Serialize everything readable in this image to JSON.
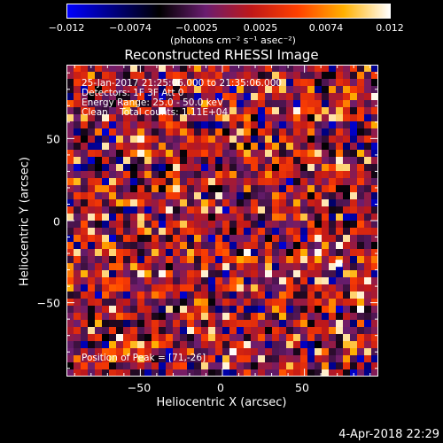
{
  "colorbar": {
    "ticks": [
      "−0.012",
      "−0.0074",
      "−0.0025",
      "0.0025",
      "0.0074",
      "0.012"
    ],
    "units": "(photons cm⁻² s⁻¹ asec⁻²)",
    "colors": [
      "#0000ff",
      "#000080",
      "#000000",
      "#6a1d70",
      "#c01818",
      "#ff4000",
      "#ffb000",
      "#ffffff"
    ]
  },
  "chart_data": {
    "type": "heatmap",
    "title": "Reconstructed RHESSI Image",
    "xlabel": "Heliocentric X (arcsec)",
    "ylabel": "Heliocentric Y (arcsec)",
    "xticks": [
      "−50",
      "0",
      "50"
    ],
    "yticks": [
      "50",
      "0",
      "−50"
    ],
    "xlim": [
      -95,
      95
    ],
    "ylim": [
      -95,
      95
    ],
    "colorbar_range": [
      -0.012,
      0.012
    ],
    "peak_position": [
      71,
      -26
    ],
    "annotations": [
      "25-Jan-2017 21:25:06.000 to 21:35:06.000",
      "Detectors: 1F 3F  Att 0",
      "Energy Range: 25.0 - 50.0 keV",
      "Clean    Total counts: 1.11E+04"
    ],
    "peak_label": "Position of Peak = [71,-26]"
  },
  "footer": {
    "timestamp": "4-Apr-2018 22:29"
  }
}
